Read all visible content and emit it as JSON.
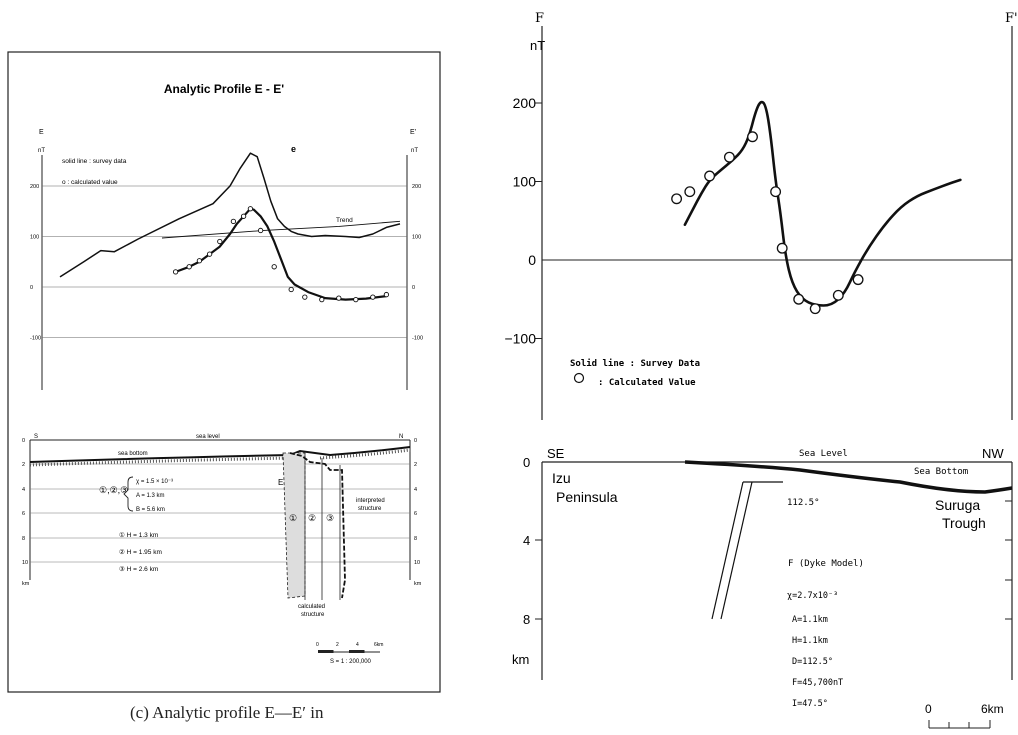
{
  "caption": "(c)  Analytic profile E—E′ in",
  "chart_data": [
    {
      "type": "line",
      "title": "Analytic Profile  E - E'",
      "left_end_label": "E",
      "right_end_label": "E'",
      "unit_label": "nT",
      "legend": [
        "solid line : survey data",
        "o : calculated value"
      ],
      "peak_label": "e",
      "trend_label": "Trend",
      "x_range": [
        0,
        100
      ],
      "ylim": [
        -200,
        300
      ],
      "yticks": [
        -100,
        0,
        100,
        200
      ],
      "series": [
        {
          "values": [
            [
              0,
              20
            ],
            [
              7,
              50
            ],
            [
              12,
              72
            ],
            [
              16,
              70
            ],
            [
              23,
              95
            ],
            [
              35,
              135
            ],
            [
              45,
              165
            ],
            [
              50,
              200
            ],
            [
              53,
              235
            ],
            [
              56,
              265
            ],
            [
              58,
              258
            ],
            [
              60,
              215
            ],
            [
              62,
              170
            ],
            [
              64,
              135
            ],
            [
              66,
              120
            ],
            [
              68,
              110
            ],
            [
              70,
              105
            ],
            [
              74,
              100
            ],
            [
              78,
              102
            ],
            [
              84,
              100
            ],
            [
              88,
              98
            ],
            [
              92,
              105
            ],
            [
              96,
              118
            ],
            [
              100,
              125
            ]
          ]
        },
        {
          "values": [
            [
              34,
              30
            ],
            [
              38,
              40
            ],
            [
              41,
              50
            ],
            [
              44,
              65
            ],
            [
              47,
              80
            ],
            [
              50,
              105
            ],
            [
              52,
              125
            ],
            [
              54,
              140
            ],
            [
              56,
              155
            ],
            [
              57,
              153
            ],
            [
              59,
              140
            ],
            [
              61,
              120
            ],
            [
              63,
              90
            ],
            [
              65,
              55
            ],
            [
              67,
              20
            ],
            [
              69,
              5
            ],
            [
              73,
              -10
            ],
            [
              78,
              -22
            ],
            [
              84,
              -25
            ],
            [
              90,
              -23
            ],
            [
              96,
              -18
            ]
          ]
        },
        {
          "values": [
            [
              30,
              97
            ],
            [
              60,
              112
            ],
            [
              82,
              120
            ],
            [
              100,
              130
            ]
          ]
        }
      ],
      "calculated_points": [
        [
          34,
          30
        ],
        [
          38,
          40
        ],
        [
          41,
          52
        ],
        [
          44,
          65
        ],
        [
          47,
          90
        ],
        [
          51,
          130
        ],
        [
          54,
          140
        ],
        [
          56,
          155
        ],
        [
          59,
          112
        ],
        [
          63,
          40
        ],
        [
          68,
          -5
        ],
        [
          72,
          -20
        ],
        [
          77,
          -25
        ],
        [
          82,
          -22
        ],
        [
          87,
          -25
        ],
        [
          92,
          -20
        ],
        [
          96,
          -15
        ]
      ],
      "section": {
        "left_label": "S",
        "right_label": "N",
        "sea_level_label": "sea level",
        "sea_bottom_label": "sea bottom",
        "depth_ticks": [
          "0",
          "2",
          "4",
          "6",
          "8",
          "10",
          "km"
        ],
        "params_group_label": "①,②,③",
        "params": [
          "χ = 1.5 × 10⁻³",
          "A = 1.3 km",
          "B = 5.6 km"
        ],
        "depths": [
          "①   H = 1.3 km",
          "②   H = 1.95 km",
          "③   H = 2.6 km"
        ],
        "body_label": "E",
        "body_numbers": [
          "①",
          "②",
          "③"
        ],
        "interpreted_label_1": "interpreted",
        "interpreted_label_2": "structure",
        "calculated_label_1": "calculated",
        "calculated_label_2": "structure",
        "scale_ticks": [
          "0",
          "2",
          "4",
          "6km"
        ],
        "scale_label": "S = 1 : 200,000"
      }
    },
    {
      "type": "line",
      "left_end_label": "F",
      "right_end_label": "F'",
      "unit_label": "nT",
      "ylim": [
        -200,
        320
      ],
      "yticks": [
        200,
        100,
        0,
        -100
      ],
      "ytick_labels": [
        "200",
        "100",
        "0",
        "−100"
      ],
      "x_range": [
        0,
        100
      ],
      "legend": [
        "Solid line : Survey Data",
        ": Calculated Value"
      ],
      "series": [
        {
          "values": [
            [
              4.5,
              45
            ],
            [
              7,
              65
            ],
            [
              9.5,
              85
            ],
            [
              12,
              102
            ],
            [
              15,
              113
            ],
            [
              19,
              127
            ],
            [
              22,
              140
            ],
            [
              24,
              158
            ],
            [
              26,
              190
            ],
            [
              27.5,
              203
            ],
            [
              29,
              198
            ],
            [
              30.5,
              160
            ],
            [
              32,
              100
            ],
            [
              33.5,
              60
            ],
            [
              35,
              5
            ],
            [
              37,
              -30
            ],
            [
              40,
              -50
            ],
            [
              44,
              -58
            ],
            [
              49,
              -58
            ],
            [
              53,
              -42
            ],
            [
              56,
              -15
            ],
            [
              60,
              15
            ],
            [
              65,
              45
            ],
            [
              70,
              68
            ],
            [
              75,
              82
            ],
            [
              80,
              90
            ],
            [
              85,
              98
            ],
            [
              88,
              102
            ]
          ]
        }
      ],
      "calculated_points": [
        [
          2,
          78
        ],
        [
          6,
          87
        ],
        [
          12,
          107
        ],
        [
          18,
          131
        ],
        [
          25,
          157
        ],
        [
          32,
          87
        ],
        [
          34,
          15
        ],
        [
          39,
          -50
        ],
        [
          44,
          -62
        ],
        [
          51,
          -45
        ],
        [
          57,
          -25
        ]
      ],
      "section": {
        "left_label": "SE",
        "right_label": "NW",
        "sea_level_label": "Sea Level",
        "sea_bottom_label": "Sea Bottom",
        "land_label_1": "Izu",
        "land_label_2": "Peninsula",
        "trough_label_1": "Suruga",
        "trough_label_2": "Trough",
        "angle_label": "112.5°",
        "model_label": "F  (Dyke Model)",
        "params": [
          "χ=2.7x10⁻³",
          "A=1.1km",
          "H=1.1km",
          "D=112.5°",
          "F=45,700nT",
          "I=47.5°"
        ],
        "depth_ticks": [
          "0",
          "4",
          "8"
        ],
        "depth_unit": "km",
        "scale_ticks": [
          "0",
          "6km"
        ]
      }
    }
  ]
}
